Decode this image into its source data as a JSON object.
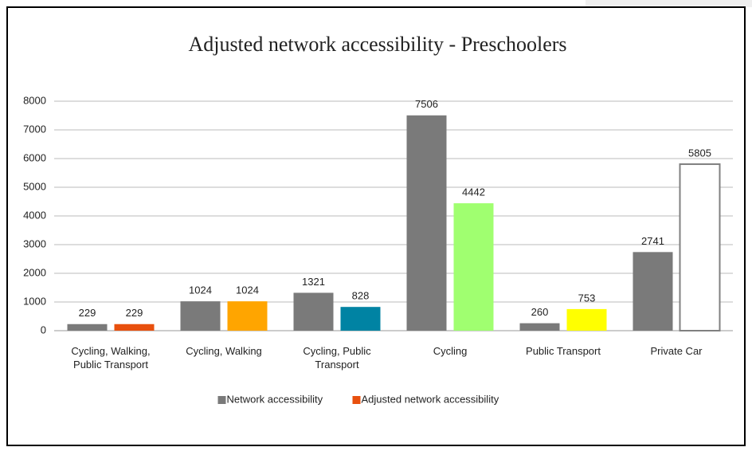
{
  "chart_data": {
    "type": "bar",
    "title": "Adjusted network accessibility - Preschoolers",
    "categories": [
      "Cycling, Walking, Public Transport",
      "Cycling, Walking",
      "Cycling, Public Transport",
      "Cycling",
      "Public Transport",
      "Private Car"
    ],
    "series": [
      {
        "name": "Network accessibility",
        "color": "#7a7a7a",
        "values": [
          229,
          1024,
          1321,
          7506,
          260,
          2741
        ]
      },
      {
        "name": "Adjusted network accessibility",
        "color": "#e8500e",
        "values": [
          229,
          1024,
          828,
          4442,
          753,
          5805
        ],
        "colors": [
          "#e8500e",
          "#ffa500",
          "#0083a3",
          "#a0ff70",
          "#ffff00",
          "#ffffff"
        ],
        "edgecolors": [
          "#e8500e",
          "#ffa500",
          "#0083a3",
          "#a0ff70",
          "#ffff00",
          "#808080"
        ]
      }
    ],
    "ylim": [
      0,
      8000
    ],
    "yticks": [
      0,
      1000,
      2000,
      3000,
      4000,
      5000,
      6000,
      7000,
      8000
    ],
    "grid": true,
    "legend": "bottom"
  }
}
